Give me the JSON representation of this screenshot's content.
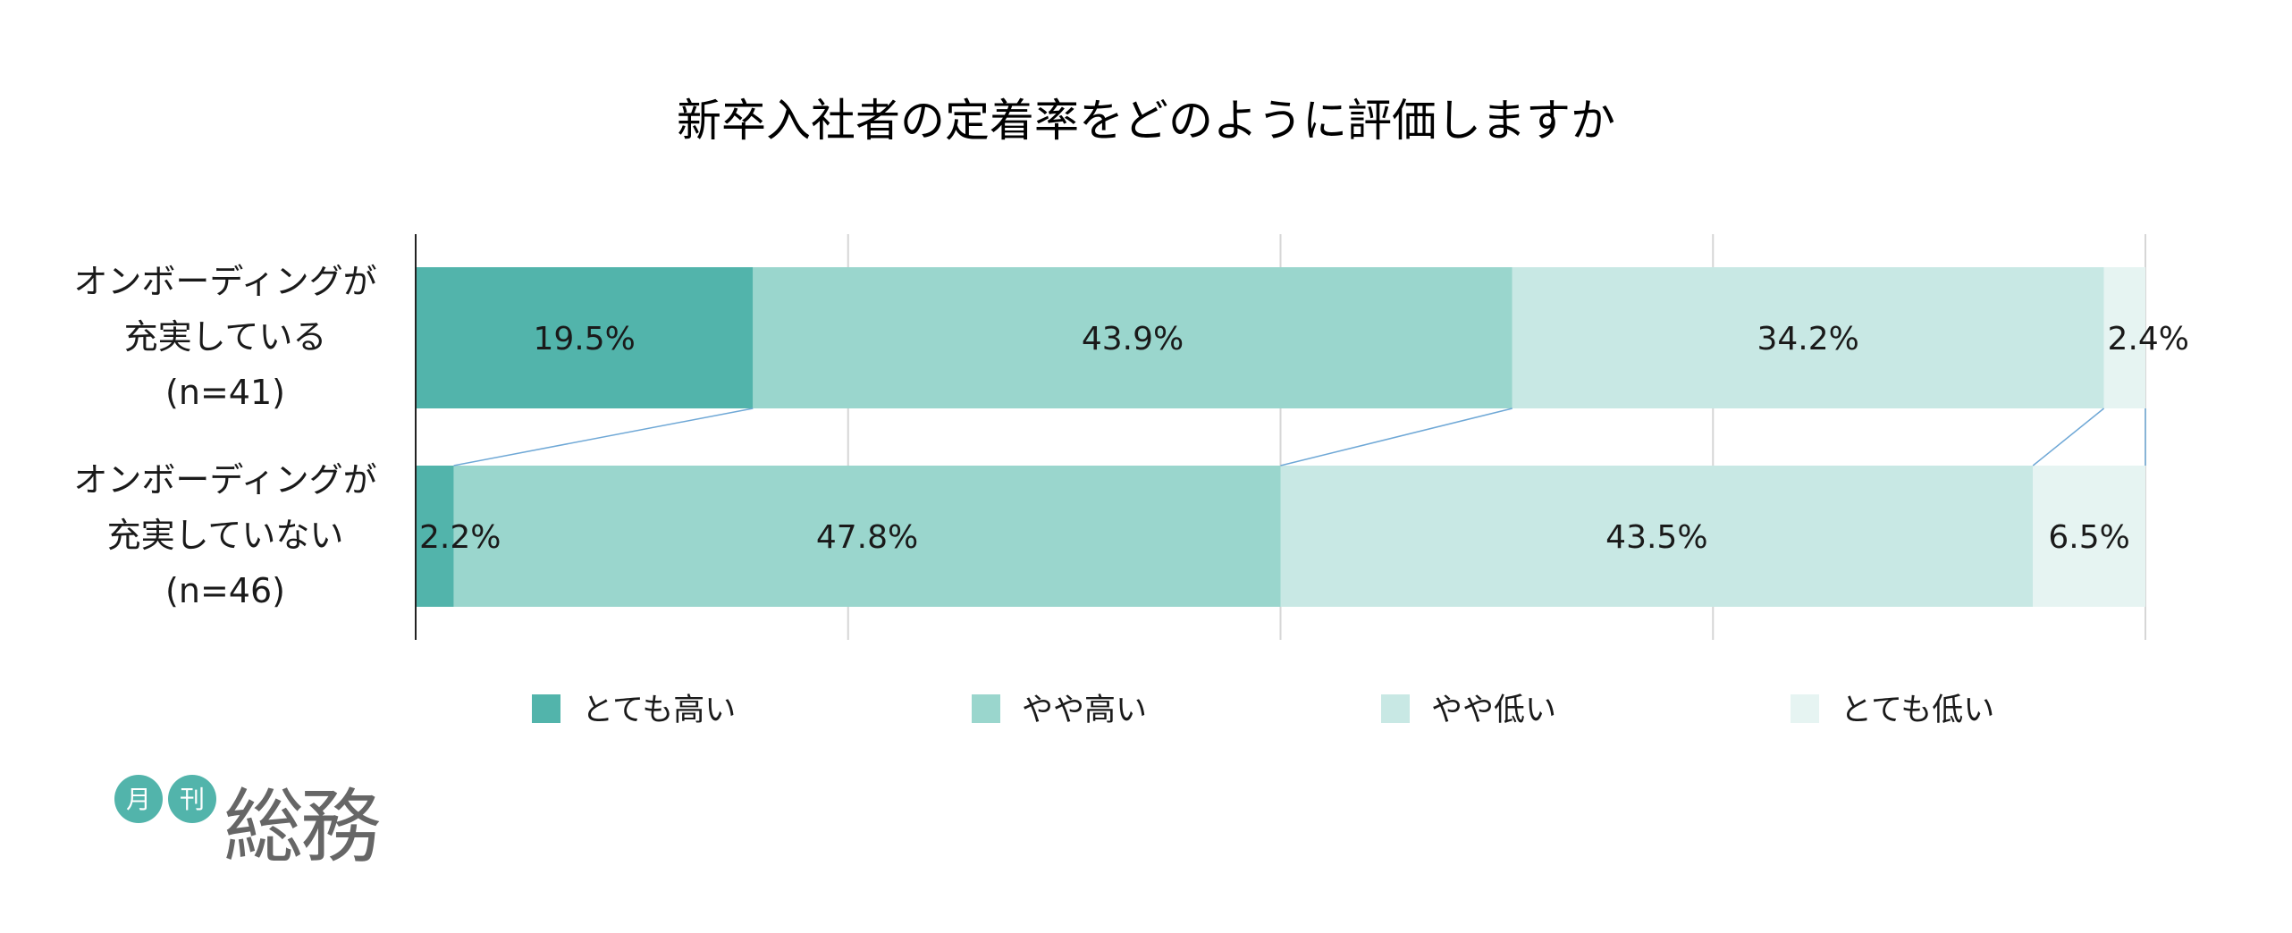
{
  "chart_data": {
    "type": "bar",
    "orientation": "horizontal",
    "stacked": "percent",
    "title": "新卒入社者の定着率をどのように評価しますか",
    "categories": [
      [
        "オンボーディングが",
        "充実している",
        "(n=41)"
      ],
      [
        "オンボーディングが",
        "充実していない",
        "(n=46)"
      ]
    ],
    "series": [
      {
        "name": "とても高い",
        "color": "#52b4ab",
        "values": [
          19.5,
          2.2
        ],
        "labels": [
          "19.5%",
          "2.2%"
        ]
      },
      {
        "name": "やや高い",
        "color": "#9ad6cd",
        "values": [
          43.9,
          47.8
        ],
        "labels": [
          "43.9%",
          "47.8%"
        ]
      },
      {
        "name": "やや低い",
        "color": "#c8e8e4",
        "values": [
          34.2,
          43.5
        ],
        "labels": [
          "34.2%",
          "43.5%"
        ]
      },
      {
        "name": "とても低い",
        "color": "#e6f4f2",
        "values": [
          2.4,
          6.5
        ],
        "labels": [
          "2.4%",
          "6.5%"
        ]
      }
    ],
    "xlim": [
      0,
      100
    ],
    "gridlines": true,
    "series_connector_lines": true,
    "legend_position": "bottom"
  },
  "logo": {
    "mark1": "月",
    "mark2": "刊",
    "text": "総務",
    "color": "#52b4ab",
    "text_color": "#666666"
  }
}
